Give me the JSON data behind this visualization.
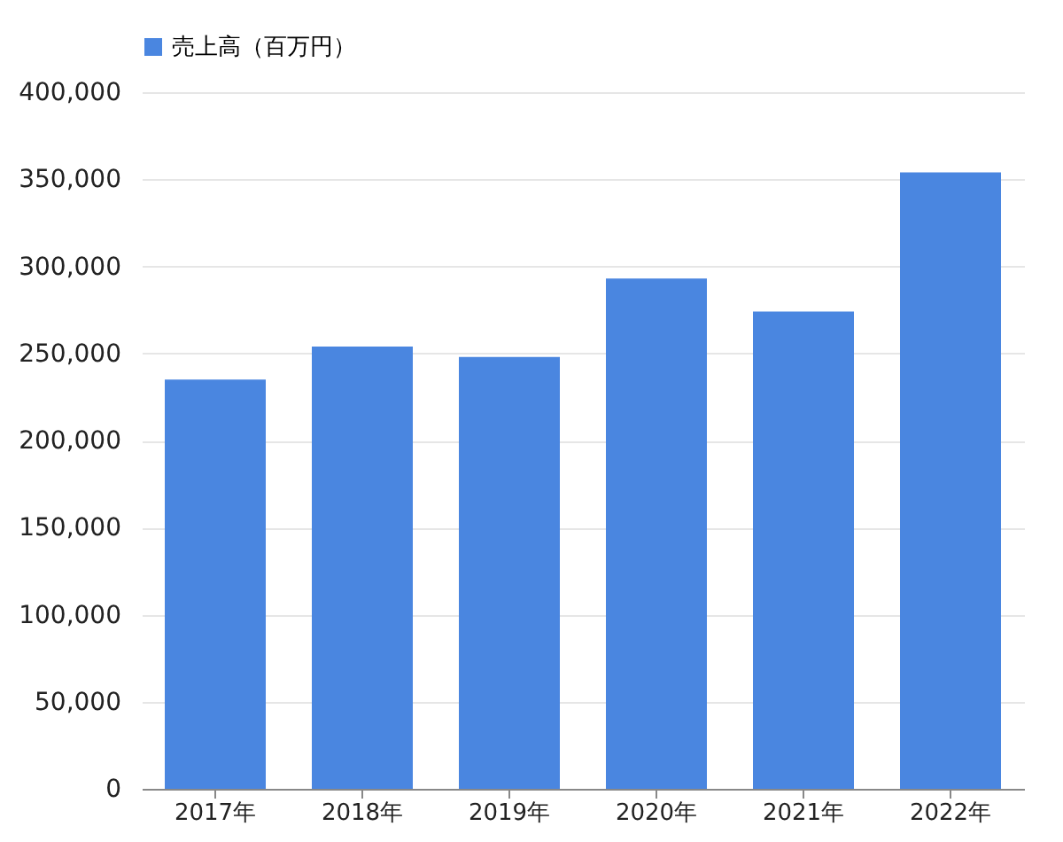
{
  "chart_data": {
    "type": "bar",
    "categories": [
      "2017年",
      "2018年",
      "2019年",
      "2020年",
      "2021年",
      "2022年"
    ],
    "series": [
      {
        "name": "売上高（百万円）",
        "color": "#4a86e0",
        "values": [
          235000,
          254000,
          248000,
          293000,
          274000,
          354000
        ]
      }
    ],
    "ylim": [
      0,
      400000
    ],
    "yticks": [
      0,
      {
        "value": 50000,
        "label": "50,000"
      },
      {
        "value": 100000,
        "label": "100,000"
      },
      {
        "value": 150000,
        "label": "150,000"
      },
      {
        "value": 200000,
        "label": "200,000"
      },
      {
        "value": 250000,
        "label": "250,000"
      },
      {
        "value": 300000,
        "label": "300,000"
      },
      {
        "value": 350000,
        "label": "350,000"
      },
      {
        "value": 400000,
        "label": "400,000"
      }
    ],
    "grid": "y",
    "legend": "top"
  }
}
